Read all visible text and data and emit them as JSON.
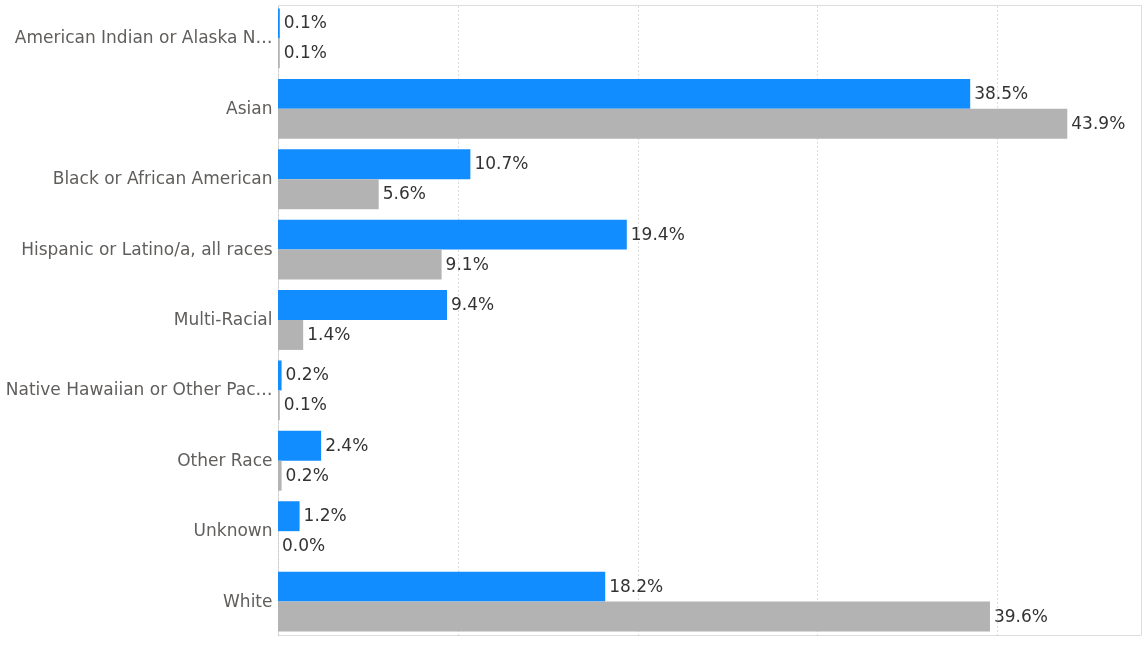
{
  "chart_data": {
    "type": "bar",
    "orientation": "horizontal",
    "categories": [
      "American Indian or Alaska N…",
      "Asian",
      "Black or African American",
      "Hispanic or Latino/a, all races",
      "Multi-Racial",
      "Native Hawaiian or Other Pac…",
      "Other Race",
      "Unknown",
      "White"
    ],
    "series": [
      {
        "color": "#118dff",
        "values": [
          0.1,
          38.5,
          10.7,
          19.4,
          9.4,
          0.2,
          2.4,
          1.2,
          18.2
        ],
        "value_labels": [
          "0.1%",
          "38.5%",
          "10.7%",
          "19.4%",
          "9.4%",
          "0.2%",
          "2.4%",
          "1.2%",
          "18.2%"
        ]
      },
      {
        "color": "#b3b3b3",
        "values": [
          0.1,
          43.9,
          5.6,
          9.1,
          1.4,
          0.1,
          0.2,
          0.0,
          39.6
        ],
        "value_labels": [
          "0.1%",
          "43.9%",
          "5.6%",
          "9.1%",
          "1.4%",
          "0.1%",
          "0.2%",
          "0.0%",
          "39.6%"
        ]
      }
    ],
    "xlim": [
      0,
      48
    ],
    "xticks": [
      {
        "value": 0,
        "label": null
      },
      {
        "value": 10,
        "label": null
      },
      {
        "value": 20,
        "label": null
      },
      {
        "value": 30,
        "label": null
      },
      {
        "value": 40,
        "label": null
      }
    ],
    "grid": "x",
    "tick_labels": "y"
  }
}
